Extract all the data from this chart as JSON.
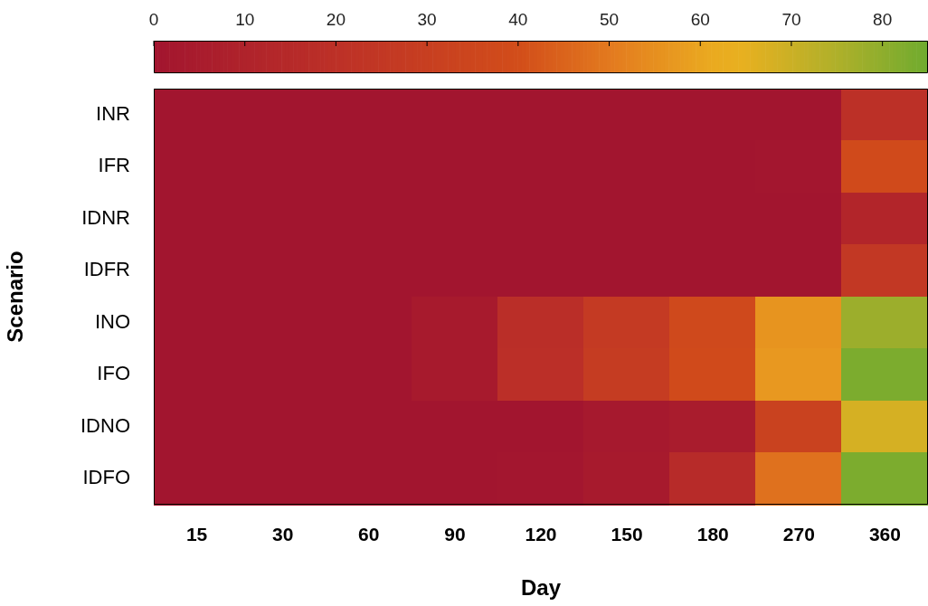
{
  "chart_data": {
    "type": "heatmap",
    "xlabel": "Day",
    "ylabel": "Scenario",
    "categories": [
      "15",
      "30",
      "60",
      "90",
      "120",
      "150",
      "180",
      "270",
      "360"
    ],
    "y_categories": [
      "INR",
      "IFR",
      "IDNR",
      "IDFR",
      "INO",
      "IFO",
      "IDNO",
      "IDFO"
    ],
    "cells": [
      [
        0,
        0,
        0,
        0,
        0,
        0,
        0,
        0,
        20
      ],
      [
        0,
        0,
        0,
        0,
        0,
        0,
        0,
        1,
        38
      ],
      [
        0,
        0,
        0,
        0,
        0,
        0,
        0,
        0,
        12
      ],
      [
        0,
        0,
        0,
        0,
        0,
        0,
        0,
        0,
        25
      ],
      [
        0,
        0,
        0,
        4,
        18,
        27,
        37,
        56,
        78
      ],
      [
        0,
        0,
        0,
        4,
        19,
        28,
        38,
        57,
        83
      ],
      [
        0,
        0,
        0,
        0,
        0,
        3,
        5,
        32,
        68
      ],
      [
        0,
        0,
        0,
        0,
        1,
        4,
        16,
        48,
        83
      ]
    ],
    "clim": [
      0,
      85
    ],
    "cticks": [
      0,
      10,
      20,
      30,
      40,
      50,
      60,
      70,
      80
    ]
  }
}
